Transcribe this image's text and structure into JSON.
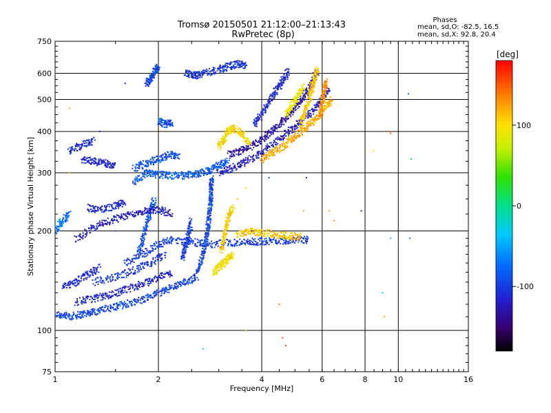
{
  "chart_data": {
    "type": "scatter",
    "title_line1": "Tromsø 20150501 21:12:00–21:13:43",
    "title_line2": "RwPretec (8p)",
    "xlabel": "Frequency [MHz]",
    "ylabel": "Stationary phase Virtual Height [km]",
    "x_scale": "log",
    "y_scale": "log",
    "xlim": [
      1,
      16
    ],
    "ylim": [
      75,
      750
    ],
    "x_ticks": [
      {
        "value": 1,
        "label": "1"
      },
      {
        "value": 2,
        "label": "2"
      },
      {
        "value": 4,
        "label": "4"
      },
      {
        "value": 6,
        "label": "6"
      },
      {
        "value": 8,
        "label": "8"
      },
      {
        "value": 10,
        "label": "10"
      },
      {
        "value": 16,
        "label": "16"
      }
    ],
    "x_gridlines": [
      2,
      4,
      6,
      8,
      10
    ],
    "y_ticks": [
      {
        "value": 75,
        "label": "75"
      },
      {
        "value": 100,
        "label": "100"
      },
      {
        "value": 200,
        "label": "200"
      },
      {
        "value": 300,
        "label": "300"
      },
      {
        "value": 400,
        "label": "400"
      },
      {
        "value": 500,
        "label": "500"
      },
      {
        "value": 600,
        "label": "600"
      },
      {
        "value": 750,
        "label": "750"
      }
    ],
    "y_gridlines": [
      100,
      200,
      300,
      400,
      500,
      600
    ],
    "grid": true,
    "stats": {
      "heading": "Phases",
      "line_o": "mean, sd,O: -82.5, 16.5",
      "line_x": "mean, sd,X:  92.8, 20.4"
    },
    "colorbar": {
      "label": "[deg]",
      "range": [
        -180,
        180
      ],
      "ticks": [
        {
          "value": 100,
          "label": "100"
        },
        {
          "value": 0,
          "label": "0"
        },
        {
          "value": -100,
          "label": "-100"
        }
      ],
      "placement": "right"
    },
    "colors": {
      "o_mode": "#1e4fd8",
      "x_mode": "#f0c800",
      "grid": "#000000"
    },
    "traces": [
      {
        "mode": "O",
        "phase": -95,
        "points": [
          [
            1.0,
            112
          ],
          [
            1.1,
            110
          ],
          [
            1.2,
            112
          ],
          [
            1.3,
            114
          ],
          [
            1.45,
            117
          ],
          [
            1.6,
            120
          ],
          [
            1.8,
            124
          ],
          [
            2.0,
            130
          ],
          [
            2.2,
            135
          ],
          [
            2.4,
            140
          ],
          [
            2.6,
            146
          ]
        ]
      },
      {
        "mode": "O",
        "phase": -115,
        "points": [
          [
            1.15,
            122
          ],
          [
            1.3,
            125
          ],
          [
            1.45,
            128
          ],
          [
            1.6,
            133
          ],
          [
            1.8,
            138
          ],
          [
            2.0,
            145
          ],
          [
            2.2,
            150
          ]
        ]
      },
      {
        "mode": "O",
        "phase": -105,
        "points": [
          [
            1.3,
            140
          ],
          [
            1.5,
            145
          ],
          [
            1.7,
            152
          ],
          [
            1.9,
            160
          ],
          [
            2.1,
            170
          ]
        ]
      },
      {
        "mode": "O",
        "phase": -110,
        "points": [
          [
            1.05,
            135
          ],
          [
            1.15,
            140
          ],
          [
            1.25,
            148
          ],
          [
            1.35,
            155
          ]
        ]
      },
      {
        "mode": "O",
        "phase": -100,
        "points": [
          [
            1.6,
            160
          ],
          [
            1.8,
            170
          ],
          [
            2.0,
            182
          ],
          [
            2.2,
            188
          ],
          [
            2.5,
            185
          ],
          [
            2.8,
            182
          ],
          [
            3.2,
            184
          ],
          [
            3.6,
            185
          ],
          [
            4.0,
            186
          ],
          [
            4.5,
            187
          ],
          [
            5.0,
            188
          ],
          [
            5.5,
            188
          ]
        ]
      },
      {
        "mode": "O",
        "phase": -95,
        "points": [
          [
            2.6,
            150
          ],
          [
            2.7,
            170
          ],
          [
            2.75,
            190
          ],
          [
            2.8,
            210
          ],
          [
            2.82,
            230
          ],
          [
            2.85,
            250
          ],
          [
            2.85,
            270
          ],
          [
            2.86,
            290
          ]
        ]
      },
      {
        "mode": "O",
        "phase": -100,
        "points": [
          [
            2.35,
            165
          ],
          [
            2.4,
            180
          ],
          [
            2.45,
            195
          ],
          [
            2.5,
            215
          ]
        ]
      },
      {
        "mode": "O",
        "phase": -90,
        "points": [
          [
            1.75,
            170
          ],
          [
            1.8,
            190
          ],
          [
            1.85,
            210
          ],
          [
            1.9,
            230
          ],
          [
            1.95,
            250
          ]
        ]
      },
      {
        "mode": "O",
        "phase": -120,
        "points": [
          [
            1.15,
            190
          ],
          [
            1.3,
            205
          ],
          [
            1.45,
            215
          ],
          [
            1.6,
            222
          ],
          [
            1.8,
            230
          ],
          [
            2.0,
            232
          ],
          [
            2.2,
            225
          ]
        ]
      },
      {
        "mode": "O",
        "phase": -110,
        "points": [
          [
            1.25,
            235
          ],
          [
            1.35,
            232
          ],
          [
            1.5,
            238
          ],
          [
            1.6,
            245
          ]
        ]
      },
      {
        "mode": "O",
        "phase": -85,
        "points": [
          [
            1.7,
            280
          ],
          [
            1.85,
            300
          ],
          [
            2.0,
            296
          ],
          [
            2.2,
            294
          ],
          [
            2.4,
            295
          ],
          [
            2.6,
            298
          ],
          [
            2.8,
            305
          ],
          [
            3.0,
            315
          ],
          [
            3.2,
            325
          ]
        ]
      },
      {
        "mode": "O",
        "phase": -90,
        "points": [
          [
            1.7,
            310
          ],
          [
            1.85,
            320
          ],
          [
            2.0,
            330
          ],
          [
            2.15,
            340
          ],
          [
            2.3,
            335
          ]
        ]
      },
      {
        "mode": "O",
        "phase": -115,
        "points": [
          [
            1.2,
            330
          ],
          [
            1.3,
            325
          ],
          [
            1.4,
            320
          ],
          [
            1.5,
            315
          ]
        ]
      },
      {
        "mode": "O",
        "phase": -110,
        "points": [
          [
            1.1,
            350
          ],
          [
            1.2,
            365
          ],
          [
            1.3,
            375
          ]
        ]
      },
      {
        "mode": "O",
        "phase": -120,
        "points": [
          [
            3.0,
            300
          ],
          [
            3.3,
            310
          ],
          [
            3.6,
            325
          ],
          [
            4.0,
            345
          ],
          [
            4.4,
            370
          ],
          [
            4.8,
            400
          ],
          [
            5.2,
            430
          ],
          [
            5.6,
            460
          ],
          [
            6.0,
            500
          ],
          [
            6.3,
            540
          ]
        ]
      },
      {
        "mode": "O",
        "phase": -130,
        "points": [
          [
            3.2,
            340
          ],
          [
            3.5,
            350
          ],
          [
            3.8,
            365
          ],
          [
            4.1,
            385
          ],
          [
            4.4,
            410
          ],
          [
            4.7,
            440
          ],
          [
            5.0,
            470
          ],
          [
            5.3,
            510
          ],
          [
            5.6,
            560
          ],
          [
            5.8,
            610
          ]
        ]
      },
      {
        "mode": "O",
        "phase": -110,
        "points": [
          [
            3.8,
            420
          ],
          [
            4.0,
            450
          ],
          [
            4.2,
            490
          ],
          [
            4.4,
            530
          ],
          [
            4.6,
            570
          ],
          [
            4.8,
            610
          ]
        ]
      },
      {
        "mode": "O",
        "phase": -90,
        "points": [
          [
            2.0,
            430
          ],
          [
            2.1,
            420
          ],
          [
            2.2,
            425
          ]
        ]
      },
      {
        "mode": "O",
        "phase": -105,
        "points": [
          [
            2.4,
            600
          ],
          [
            2.55,
            590
          ],
          [
            2.7,
            600
          ],
          [
            3.0,
            615
          ],
          [
            3.2,
            630
          ],
          [
            3.4,
            640
          ],
          [
            3.6,
            635
          ]
        ]
      },
      {
        "mode": "O",
        "phase": -95,
        "points": [
          [
            1.85,
            560
          ],
          [
            1.9,
            580
          ],
          [
            1.95,
            610
          ],
          [
            2.0,
            630
          ]
        ]
      },
      {
        "mode": "O",
        "phase": -70,
        "points": [
          [
            1.0,
            200
          ],
          [
            1.05,
            215
          ],
          [
            1.1,
            225
          ]
        ]
      },
      {
        "mode": "X",
        "phase": 95,
        "points": [
          [
            2.9,
            150
          ],
          [
            3.0,
            155
          ],
          [
            3.1,
            160
          ],
          [
            3.2,
            165
          ],
          [
            3.3,
            170
          ]
        ]
      },
      {
        "mode": "X",
        "phase": 105,
        "points": [
          [
            3.05,
            175
          ],
          [
            3.1,
            190
          ],
          [
            3.15,
            205
          ],
          [
            3.2,
            220
          ],
          [
            3.3,
            235
          ]
        ]
      },
      {
        "mode": "X",
        "phase": 110,
        "points": [
          [
            3.4,
            195
          ],
          [
            3.7,
            200
          ],
          [
            4.0,
            198
          ],
          [
            4.4,
            195
          ],
          [
            4.8,
            193
          ],
          [
            5.2,
            192
          ]
        ]
      },
      {
        "mode": "X",
        "phase": 100,
        "points": [
          [
            3.0,
            360
          ],
          [
            3.1,
            380
          ],
          [
            3.2,
            400
          ],
          [
            3.3,
            410
          ],
          [
            3.5,
            395
          ],
          [
            3.7,
            370
          ]
        ]
      },
      {
        "mode": "X",
        "phase": 120,
        "points": [
          [
            4.0,
            330
          ],
          [
            4.3,
            345
          ],
          [
            4.6,
            360
          ],
          [
            4.9,
            380
          ],
          [
            5.2,
            400
          ],
          [
            5.5,
            420
          ],
          [
            5.8,
            440
          ],
          [
            6.1,
            470
          ],
          [
            6.4,
            500
          ]
        ]
      },
      {
        "mode": "X",
        "phase": 110,
        "points": [
          [
            5.2,
            420
          ],
          [
            5.35,
            460
          ],
          [
            5.5,
            500
          ],
          [
            5.6,
            540
          ],
          [
            5.7,
            580
          ],
          [
            5.8,
            620
          ]
        ]
      },
      {
        "mode": "X",
        "phase": 90,
        "points": [
          [
            4.7,
            450
          ],
          [
            4.9,
            480
          ],
          [
            5.1,
            510
          ],
          [
            5.3,
            550
          ]
        ]
      },
      {
        "mode": "X",
        "phase": 130,
        "points": [
          [
            5.9,
            450
          ],
          [
            6.0,
            490
          ],
          [
            6.1,
            530
          ],
          [
            6.15,
            570
          ]
        ]
      }
    ],
    "isolated_points": [
      {
        "f": 9.4,
        "h": 400,
        "phase": 150
      },
      {
        "f": 9.5,
        "h": 395,
        "phase": 150
      },
      {
        "f": 8.5,
        "h": 350,
        "phase": 100
      },
      {
        "f": 10.7,
        "h": 520,
        "phase": -90
      },
      {
        "f": 10.9,
        "h": 330,
        "phase": 20
      },
      {
        "f": 10.8,
        "h": 190,
        "phase": -60
      },
      {
        "f": 9.5,
        "h": 190,
        "phase": -40
      },
      {
        "f": 9.0,
        "h": 130,
        "phase": -40
      },
      {
        "f": 9.1,
        "h": 110,
        "phase": 120
      },
      {
        "f": 4.6,
        "h": 95,
        "phase": 150
      },
      {
        "f": 4.7,
        "h": 90,
        "phase": 160
      },
      {
        "f": 4.5,
        "h": 120,
        "phase": 140
      },
      {
        "f": 3.6,
        "h": 100,
        "phase": 110
      },
      {
        "f": 2.7,
        "h": 88,
        "phase": -20
      },
      {
        "f": 6.3,
        "h": 230,
        "phase": 120
      },
      {
        "f": 6.5,
        "h": 215,
        "phase": 130
      },
      {
        "f": 7.8,
        "h": 230,
        "phase": -110
      },
      {
        "f": 5.3,
        "h": 230,
        "phase": 120
      },
      {
        "f": 4.2,
        "h": 290,
        "phase": -100
      },
      {
        "f": 5.4,
        "h": 290,
        "phase": -110
      },
      {
        "f": 1.1,
        "h": 300,
        "phase": 110
      },
      {
        "f": 1.35,
        "h": 400,
        "phase": -120
      },
      {
        "f": 1.6,
        "h": 560,
        "phase": -110
      },
      {
        "f": 1.1,
        "h": 470,
        "phase": 120
      },
      {
        "f": 1.5,
        "h": 200,
        "phase": -100
      },
      {
        "f": 2.9,
        "h": 600,
        "phase": -110
      },
      {
        "f": 3.6,
        "h": 270,
        "phase": 100
      },
      {
        "f": 3.4,
        "h": 250,
        "phase": 110
      }
    ]
  }
}
